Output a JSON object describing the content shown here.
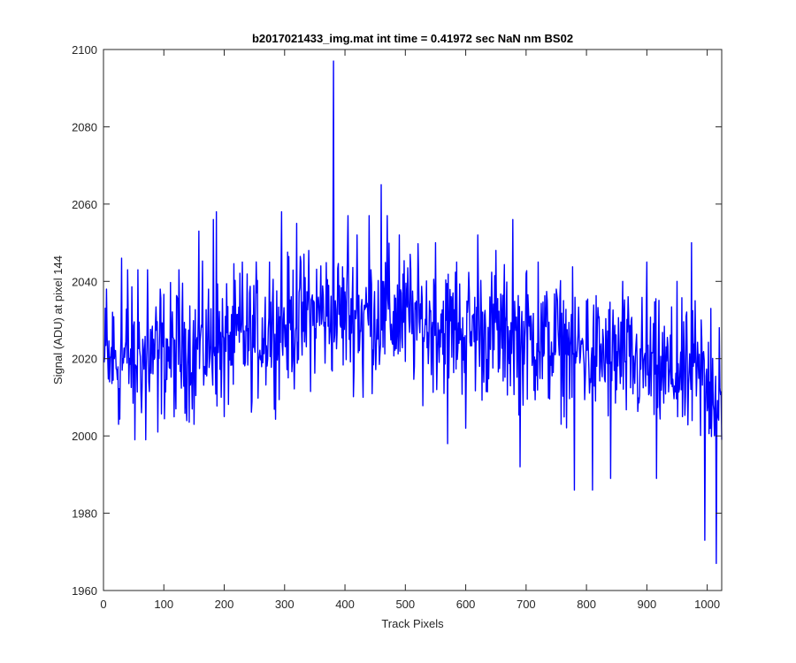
{
  "chart_data": {
    "type": "line",
    "title": "b2017021433_img.mat int time = 0.41972 sec  NaN nm BS02",
    "xlabel": "Track Pixels",
    "ylabel": "Signal (ADU) at pixel 144",
    "xlim": [
      0,
      1024
    ],
    "ylim": [
      1960,
      2100
    ],
    "xticks": [
      0,
      100,
      200,
      300,
      400,
      500,
      600,
      700,
      800,
      900,
      1000
    ],
    "yticks": [
      1960,
      1980,
      2000,
      2020,
      2040,
      2060,
      2080,
      2100
    ],
    "grid": false,
    "series": [
      {
        "color": "#0000ff",
        "x_start": 1,
        "x_step": 1,
        "keypoints": [
          [
            1,
            2019
          ],
          [
            5,
            2038
          ],
          [
            10,
            2014
          ],
          [
            15,
            2032
          ],
          [
            25,
            2003
          ],
          [
            30,
            2046
          ],
          [
            40,
            2043
          ],
          [
            52,
            1999
          ],
          [
            57,
            2043
          ],
          [
            70,
            1999
          ],
          [
            73,
            2043
          ],
          [
            90,
            2001
          ],
          [
            94,
            2038
          ],
          [
            120,
            2007
          ],
          [
            125,
            2043
          ],
          [
            150,
            2003
          ],
          [
            158,
            2053
          ],
          [
            182,
            2056
          ],
          [
            187,
            2058
          ],
          [
            200,
            2005
          ],
          [
            230,
            2045
          ],
          [
            246,
            2009
          ],
          [
            275,
            2045
          ],
          [
            295,
            2058
          ],
          [
            320,
            2055
          ],
          [
            340,
            2048
          ],
          [
            360,
            2044
          ],
          [
            381,
            2097
          ],
          [
            383,
            2026
          ],
          [
            405,
            2057
          ],
          [
            420,
            2052
          ],
          [
            430,
            2010
          ],
          [
            440,
            2057
          ],
          [
            460,
            2065
          ],
          [
            462,
            2040
          ],
          [
            470,
            2057
          ],
          [
            490,
            2052
          ],
          [
            508,
            2047
          ],
          [
            550,
            2050
          ],
          [
            570,
            1998
          ],
          [
            585,
            2045
          ],
          [
            600,
            2002
          ],
          [
            620,
            2052
          ],
          [
            650,
            2048
          ],
          [
            678,
            2056
          ],
          [
            690,
            1992
          ],
          [
            700,
            2042
          ],
          [
            720,
            2045
          ],
          [
            750,
            2038
          ],
          [
            780,
            1986
          ],
          [
            800,
            2035
          ],
          [
            810,
            1986
          ],
          [
            840,
            1989
          ],
          [
            860,
            2040
          ],
          [
            900,
            2045
          ],
          [
            916,
            1989
          ],
          [
            950,
            2040
          ],
          [
            974,
            2050
          ],
          [
            980,
            2035
          ],
          [
            990,
            2030
          ],
          [
            996,
            1973
          ],
          [
            1006,
            2033
          ],
          [
            1015,
            1967
          ],
          [
            1020,
            2028
          ],
          [
            1024,
            1999
          ]
        ],
        "baseline_segments": [
          [
            1,
            2019
          ],
          [
            200,
            2024
          ],
          [
            380,
            2032
          ],
          [
            500,
            2030
          ],
          [
            700,
            2025
          ],
          [
            850,
            2020
          ],
          [
            1024,
            2012
          ]
        ],
        "noise_amplitude": 11
      }
    ]
  }
}
